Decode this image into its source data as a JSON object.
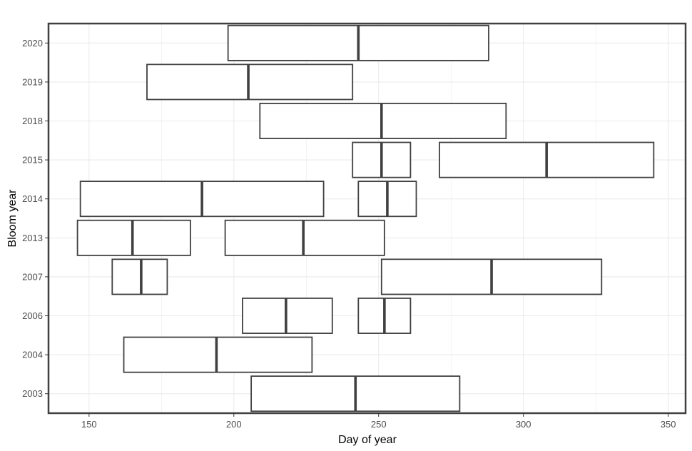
{
  "chart_data": {
    "type": "boxplot",
    "xlabel": "Day of year",
    "ylabel": "Bloom year",
    "xlim": [
      136,
      356
    ],
    "x_ticks": [
      150,
      200,
      250,
      300,
      350
    ],
    "categories": [
      "2003",
      "2004",
      "2006",
      "2007",
      "2013",
      "2014",
      "2015",
      "2018",
      "2019",
      "2020"
    ],
    "grid": true,
    "boxes": [
      {
        "year": "2020",
        "start": 198,
        "median": 243,
        "end": 288
      },
      {
        "year": "2019",
        "start": 170,
        "median": 205,
        "end": 241
      },
      {
        "year": "2018",
        "start": 209,
        "median": 251,
        "end": 294
      },
      {
        "year": "2015",
        "start": 241,
        "median": 251,
        "end": 261
      },
      {
        "year": "2015",
        "start": 271,
        "median": 308,
        "end": 345
      },
      {
        "year": "2014",
        "start": 147,
        "median": 189,
        "end": 231
      },
      {
        "year": "2014",
        "start": 243,
        "median": 253,
        "end": 263
      },
      {
        "year": "2013",
        "start": 146,
        "median": 165,
        "end": 185
      },
      {
        "year": "2013",
        "start": 197,
        "median": 224,
        "end": 252
      },
      {
        "year": "2007",
        "start": 158,
        "median": 168,
        "end": 177
      },
      {
        "year": "2007",
        "start": 251,
        "median": 289,
        "end": 327
      },
      {
        "year": "2006",
        "start": 203,
        "median": 218,
        "end": 234
      },
      {
        "year": "2006",
        "start": 243,
        "median": 252,
        "end": 261
      },
      {
        "year": "2004",
        "start": 162,
        "median": 194,
        "end": 227
      },
      {
        "year": "2003",
        "start": 206,
        "median": 242,
        "end": 278
      }
    ],
    "colors": {
      "box_stroke": "#404040",
      "box_fill": "#ffffff",
      "grid": "#ebebeb",
      "panel_border": "#404040"
    }
  }
}
